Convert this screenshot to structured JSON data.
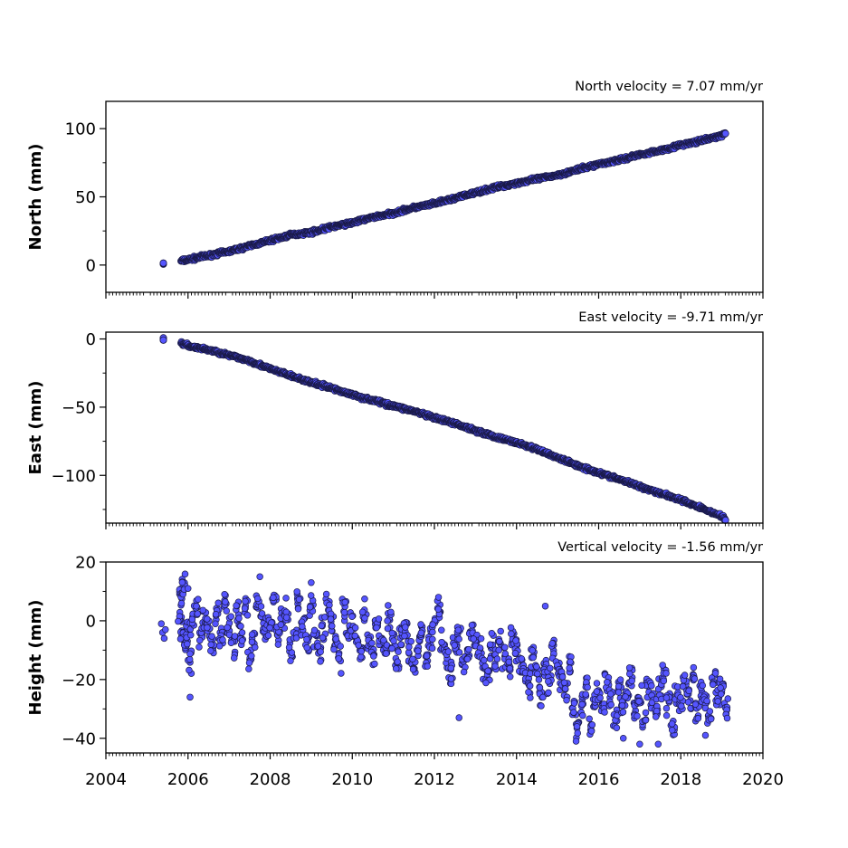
{
  "colors": {
    "marker_fill": "#5555ff",
    "marker_edge": "#1a1a4a",
    "axes": "#000000",
    "background": "#ffffff"
  },
  "x_axis": {
    "range": [
      2004,
      2020
    ],
    "ticks": [
      2004,
      2006,
      2008,
      2010,
      2012,
      2014,
      2016,
      2018,
      2020
    ],
    "tick_labels": [
      "2004",
      "2006",
      "2008",
      "2010",
      "2012",
      "2014",
      "2016",
      "2018",
      "2020"
    ],
    "minor_ticks_per_year": 12
  },
  "chart_data": [
    {
      "type": "scatter",
      "title": "North velocity = 7.07 mm/yr",
      "ylabel": "North (mm)",
      "ylim": [
        -20,
        120
      ],
      "yticks": [
        0,
        50,
        100
      ],
      "ytick_labels": [
        "0",
        "50",
        "100"
      ],
      "x_range": [
        2004,
        2020
      ],
      "series": [
        {
          "x": [
            2005.4,
            2005.83,
            2006,
            2006.5,
            2007,
            2007.5,
            2008,
            2008.5,
            2009,
            2009.5,
            2010,
            2010.5,
            2011,
            2011.5,
            2012,
            2012.5,
            2013,
            2013.5,
            2014,
            2014.5,
            2015,
            2015.5,
            2016,
            2016.5,
            2017,
            2017.5,
            2018,
            2018.5,
            2019,
            2019.1
          ],
          "y": [
            1,
            3,
            4,
            7,
            10,
            14,
            18,
            22,
            24,
            28,
            31,
            35,
            38,
            42,
            45,
            49,
            53,
            57,
            60,
            63,
            66,
            70,
            74,
            77,
            81,
            84,
            88,
            91,
            95,
            97
          ]
        }
      ]
    },
    {
      "type": "scatter",
      "title": "East velocity = -9.71 mm/yr",
      "ylabel": "East (mm)",
      "ylim": [
        -135,
        5
      ],
      "yticks": [
        0,
        -50,
        -100
      ],
      "ytick_labels": [
        "0",
        "−50",
        "−100"
      ],
      "x_range": [
        2004,
        2020
      ],
      "series": [
        {
          "x": [
            2005.4,
            2005.83,
            2006,
            2006.5,
            2007,
            2007.5,
            2008,
            2008.5,
            2009,
            2009.5,
            2010,
            2010.5,
            2011,
            2011.5,
            2012,
            2012.5,
            2013,
            2013.5,
            2014,
            2014.5,
            2015,
            2015.5,
            2016,
            2016.5,
            2017,
            2017.5,
            2018,
            2018.5,
            2019,
            2019.1
          ],
          "y": [
            0,
            -3,
            -5,
            -8,
            -12,
            -16,
            -22,
            -27,
            -32,
            -36,
            -41,
            -45,
            -49,
            -53,
            -58,
            -62,
            -67,
            -72,
            -76,
            -81,
            -87,
            -93,
            -98,
            -103,
            -108,
            -113,
            -118,
            -124,
            -130,
            -133
          ]
        }
      ]
    },
    {
      "type": "scatter",
      "title": "Vertical velocity = -1.56 mm/yr",
      "ylabel": "Height (mm)",
      "ylim": [
        -45,
        20
      ],
      "yticks": [
        20,
        0,
        -20,
        -40
      ],
      "ytick_labels": [
        "20",
        "0",
        "−20",
        "−40"
      ],
      "x_range": [
        2004,
        2020
      ],
      "series": [
        {
          "x": [
            2005.35,
            2005.38,
            2005.42,
            2005.45,
            2005.8,
            2005.83,
            2005.86,
            2005.9,
            2005.95,
            2006,
            2006.05,
            2006.1,
            2006.2,
            2006.3,
            2006.4,
            2006.5,
            2006.6,
            2006.7,
            2006.8,
            2006.9,
            2007,
            2007.1,
            2007.2,
            2007.3,
            2007.4,
            2007.5,
            2007.6,
            2007.7,
            2007.8,
            2007.9,
            2008,
            2008.1,
            2008.2,
            2008.3,
            2008.4,
            2008.5,
            2008.6,
            2008.7,
            2008.8,
            2008.9,
            2009,
            2009.1,
            2009.2,
            2009.3,
            2009.4,
            2009.5,
            2009.6,
            2009.7,
            2009.8,
            2009.9,
            2010,
            2010.1,
            2010.2,
            2010.3,
            2010.4,
            2010.5,
            2010.6,
            2010.7,
            2010.8,
            2010.9,
            2011,
            2011.1,
            2011.2,
            2011.3,
            2011.4,
            2011.5,
            2011.6,
            2011.7,
            2011.8,
            2011.9,
            2012,
            2012.1,
            2012.2,
            2012.3,
            2012.4,
            2012.5,
            2012.6,
            2012.7,
            2012.8,
            2012.9,
            2013,
            2013.1,
            2013.2,
            2013.3,
            2013.4,
            2013.5,
            2013.6,
            2013.7,
            2013.8,
            2013.9,
            2014,
            2014.1,
            2014.2,
            2014.3,
            2014.4,
            2014.5,
            2014.6,
            2014.7,
            2014.8,
            2014.9,
            2015,
            2015.1,
            2015.2,
            2015.3,
            2015.4,
            2015.5,
            2015.6,
            2015.7,
            2015.8,
            2015.9,
            2016,
            2016.1,
            2016.2,
            2016.3,
            2016.4,
            2016.5,
            2016.6,
            2016.7,
            2016.8,
            2016.9,
            2017,
            2017.1,
            2017.2,
            2017.3,
            2017.4,
            2017.5,
            2017.6,
            2017.7,
            2017.8,
            2017.9,
            2018,
            2018.1,
            2018.2,
            2018.3,
            2018.4,
            2018.5,
            2018.6,
            2018.7,
            2018.8,
            2018.9,
            2019,
            2019.1,
            2006,
            2006.05,
            2007.75,
            2009,
            2012.1,
            2012.6,
            2014.7,
            2015.45,
            2016.6,
            2017,
            2017.05,
            2017.45,
            2018.6
          ],
          "y": [
            -1,
            -4,
            -6,
            -3,
            2,
            8,
            -5,
            12,
            -8,
            -3,
            -14,
            -2,
            4,
            -6,
            1,
            -3,
            -9,
            3,
            -5,
            6,
            -2,
            -8,
            2,
            -4,
            5,
            -12,
            -6,
            7,
            0,
            -3,
            -1,
            8,
            -5,
            2,
            3,
            -10,
            -4,
            6,
            -2,
            -7,
            4,
            -5,
            -10,
            -3,
            6,
            -2,
            -8,
            -14,
            5,
            -4,
            -2,
            -6,
            -10,
            3,
            -7,
            -12,
            -2,
            -6,
            -9,
            1,
            -8,
            -13,
            -5,
            -3,
            -10,
            -16,
            -8,
            -4,
            -14,
            -6,
            -2,
            3,
            -8,
            -13,
            -17,
            -10,
            -6,
            -14,
            -11,
            -3,
            -8,
            -10,
            -15,
            -18,
            -9,
            -14,
            -7,
            -12,
            -16,
            -5,
            -10,
            -14,
            -17,
            -22,
            -12,
            -18,
            -25,
            -15,
            -21,
            -10,
            -16,
            -21,
            -24,
            -13,
            -30,
            -36,
            -28,
            -22,
            -34,
            -27,
            -24,
            -30,
            -20,
            -26,
            -33,
            -22,
            -28,
            -25,
            -18,
            -30,
            -27,
            -34,
            -22,
            -26,
            -31,
            -24,
            -20,
            -28,
            -36,
            -25,
            -29,
            -22,
            -26,
            -19,
            -31,
            -24,
            -28,
            -33,
            -20,
            -27,
            -23,
            -29,
            11,
            -26,
            15,
            13,
            8,
            -33,
            5,
            -41,
            -40,
            -42,
            -22,
            -42,
            -39
          ]
        }
      ]
    }
  ]
}
